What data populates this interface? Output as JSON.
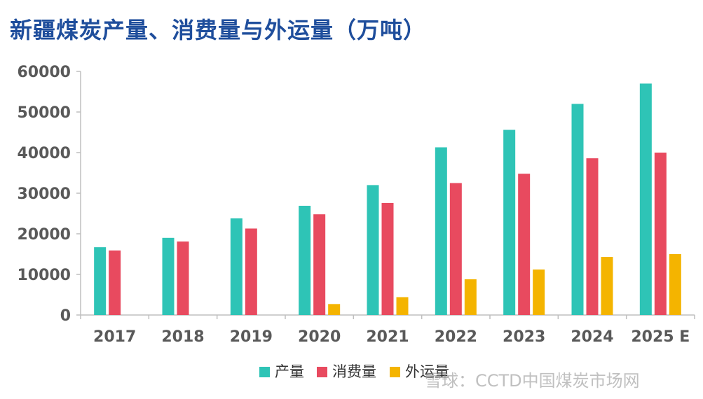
{
  "chart_data": {
    "type": "bar",
    "title": "新疆煤炭产量、消费量与外运量（万吨）",
    "categories": [
      "2017",
      "2018",
      "2019",
      "2020",
      "2021",
      "2022",
      "2023",
      "2024",
      "2025 E"
    ],
    "series": [
      {
        "name": "产量",
        "color": "#2ec4b6",
        "values": [
          16700,
          19000,
          23800,
          26900,
          32000,
          41300,
          45600,
          52000,
          57000
        ]
      },
      {
        "name": "消费量",
        "color": "#e84a5f",
        "values": [
          15900,
          18100,
          21300,
          24800,
          27600,
          32500,
          34800,
          38600,
          40000
        ]
      },
      {
        "name": "外运量",
        "color": "#f4b400",
        "values": [
          null,
          null,
          null,
          2700,
          4400,
          8800,
          11200,
          14300,
          15000
        ]
      }
    ],
    "ylim": [
      0,
      60000
    ],
    "yticks": [
      "0",
      "10000",
      "20000",
      "30000",
      "40000",
      "50000",
      "60000"
    ],
    "ytick_values": [
      0,
      10000,
      20000,
      30000,
      40000,
      50000,
      60000
    ],
    "legend": "bottom",
    "grid": false
  },
  "watermark": "雪球：CCTD中国煤炭市场网"
}
